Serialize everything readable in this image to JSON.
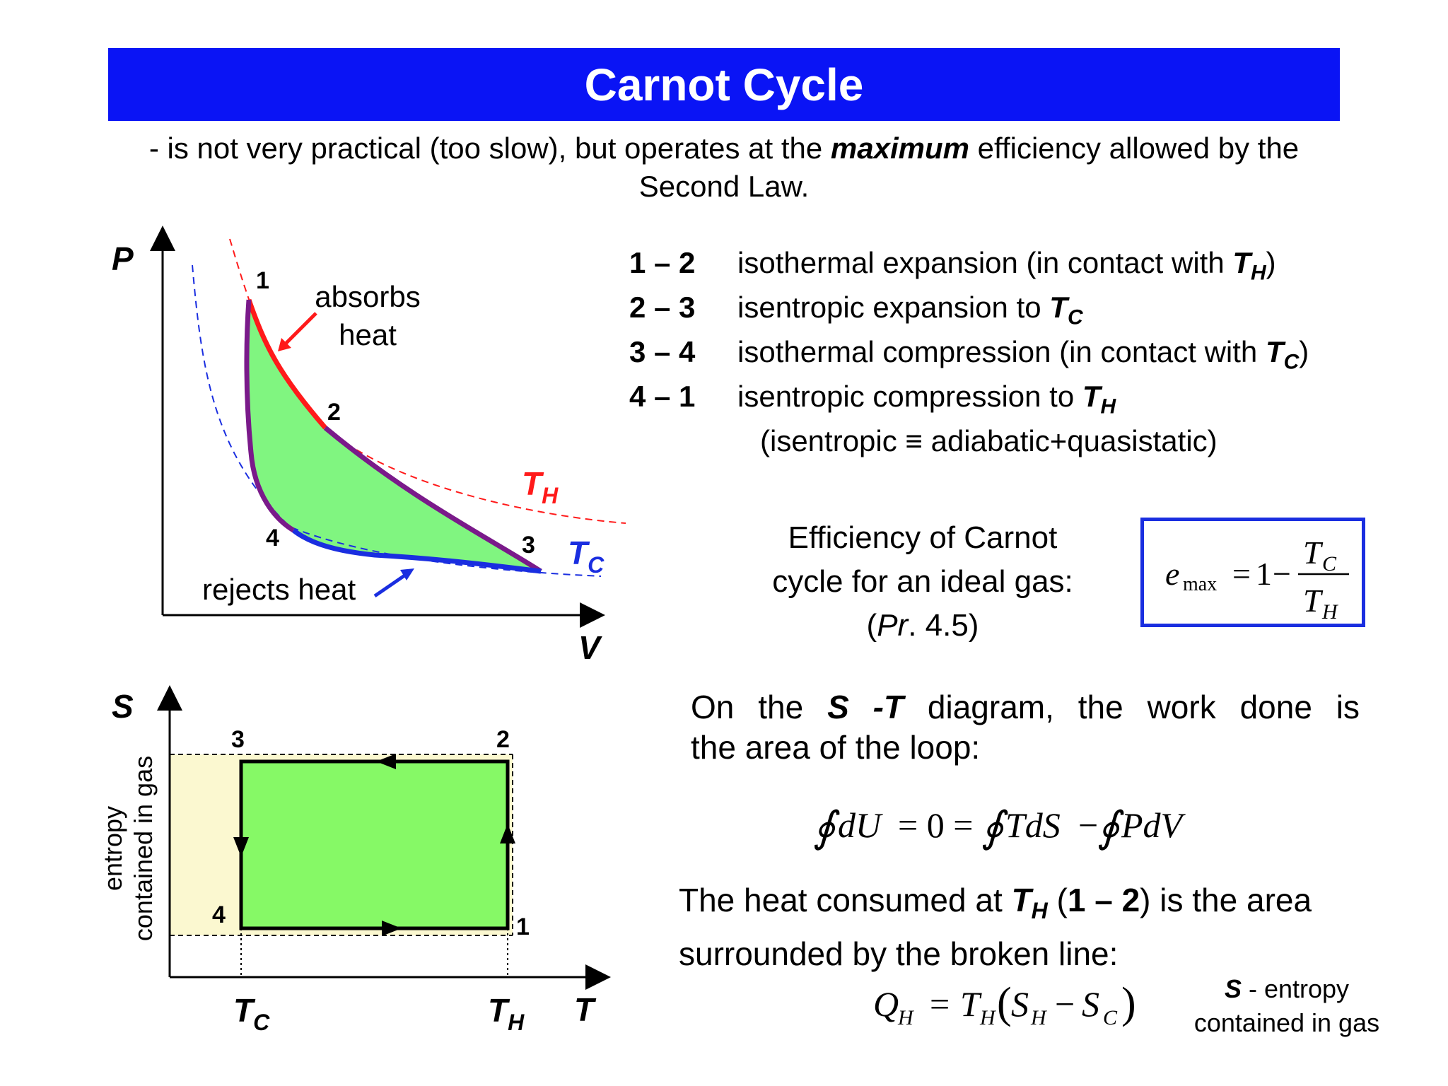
{
  "header": {
    "title": "Carnot Cycle"
  },
  "subtitle": {
    "pre": "- is not very practical (too slow), but operates at the ",
    "emph": "maximum",
    "post": " efficiency allowed by the Second Law."
  },
  "steps": [
    {
      "num": "1 – 2",
      "text": "isothermal expansion (in contact with ",
      "sym": "T",
      "sub": "H",
      "tail": ")"
    },
    {
      "num": "2 – 3",
      "text": "isentropic expansion to ",
      "sym": "T",
      "sub": "C",
      "tail": ""
    },
    {
      "num": "3 – 4",
      "text": "isothermal compression (in contact with ",
      "sym": "T",
      "sub": "C",
      "tail": ")"
    },
    {
      "num": "4 – 1",
      "text": "isentropic compression to ",
      "sym": "T",
      "sub": "H",
      "tail": ""
    }
  ],
  "isentropic_note": "(isentropic ≡ adiabatic+quasistatic)",
  "efficiency": {
    "line1": "Efficiency of Carnot",
    "line2": "cycle for an ideal gas:",
    "ref_open": "(",
    "ref_italic": "Pr",
    "ref_rest": ". 4.5)",
    "formula": {
      "e": "e",
      "max": "max",
      "eq": "=",
      "one": "1",
      "minus": "−",
      "num_T": "T",
      "num_sub": "C",
      "den_T": "T",
      "den_sub": "H"
    }
  },
  "st_paragraph": {
    "line1_a": "On the ",
    "line1_b": "S -T",
    "line1_c": " diagram, the work done is",
    "line2": "the area of the loop:"
  },
  "loop_equation": {
    "lhs": "dU",
    "eq1": "= 0 =",
    "t1": "TdS",
    "minus": "−",
    "t2": "PdV"
  },
  "heat_paragraph": {
    "a": "The heat consumed at ",
    "sym": "T",
    "sub": "H",
    "b": " (",
    "range": "1 – 2",
    "c": ") is the area",
    "line2": "surrounded by the broken line:"
  },
  "heat_equation": {
    "Q": "Q",
    "Qsub": "H",
    "eq": "=",
    "T": "T",
    "Tsub": "H",
    "S1": "S",
    "S1sub": "H",
    "minus": "−",
    "S2": "S",
    "S2sub": "C"
  },
  "entropy_note": {
    "sym": "S",
    "dash": " -  entropy",
    "line2": "contained in gas"
  },
  "pv_diagram": {
    "axis_p": "P",
    "axis_v": "V",
    "points": [
      "1",
      "2",
      "3",
      "4"
    ],
    "absorbs": [
      "absorbs",
      "heat"
    ],
    "rejects": "rejects heat",
    "th_label": "T",
    "th_sub": "H",
    "tc_label": "T",
    "tc_sub": "C",
    "colors": {
      "hot": "#ff1a1a",
      "cold": "#1a2ee0",
      "adiabat": "#7a1a8a",
      "fill": "#80f580"
    }
  },
  "st_diagram": {
    "axis_s": "S",
    "axis_t": "T",
    "ylabel_1": "entropy",
    "ylabel_2": "contained in gas",
    "points": [
      "1",
      "2",
      "3",
      "4"
    ],
    "tc_label": "T",
    "tc_sub": "C",
    "th_label": "T",
    "th_sub": "H",
    "colors": {
      "fill": "#86f966",
      "heat_area": "#fbf8d0"
    }
  }
}
